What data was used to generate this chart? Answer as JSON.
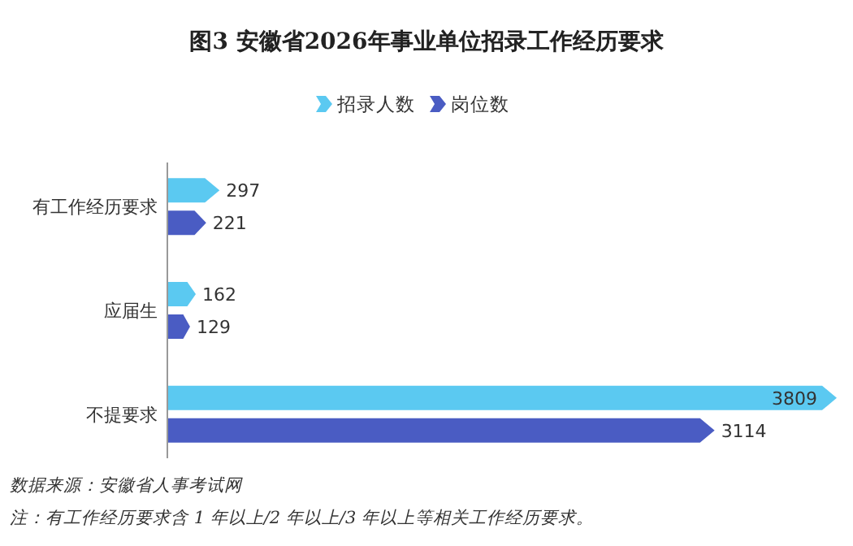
{
  "chart_data": {
    "type": "bar",
    "orientation": "horizontal",
    "title": "图3  安徽省2026年事业单位招录工作经历要求",
    "categories": [
      "有工作经历要求",
      "应届生",
      "不提要求"
    ],
    "series": [
      {
        "name": "招录人数",
        "color": "#5bc9f1",
        "values": [
          297,
          162,
          3809
        ]
      },
      {
        "name": "岗位数",
        "color": "#4a5cc3",
        "values": [
          221,
          129,
          3114
        ]
      }
    ],
    "data_labels": true,
    "legend": "top",
    "grid": false,
    "annotations": [
      "数据来源：安徽省人事考试网",
      "注：有工作经历要求含 1 年以上/2 年以上/3 年以上等相关工作经历要求。"
    ]
  }
}
